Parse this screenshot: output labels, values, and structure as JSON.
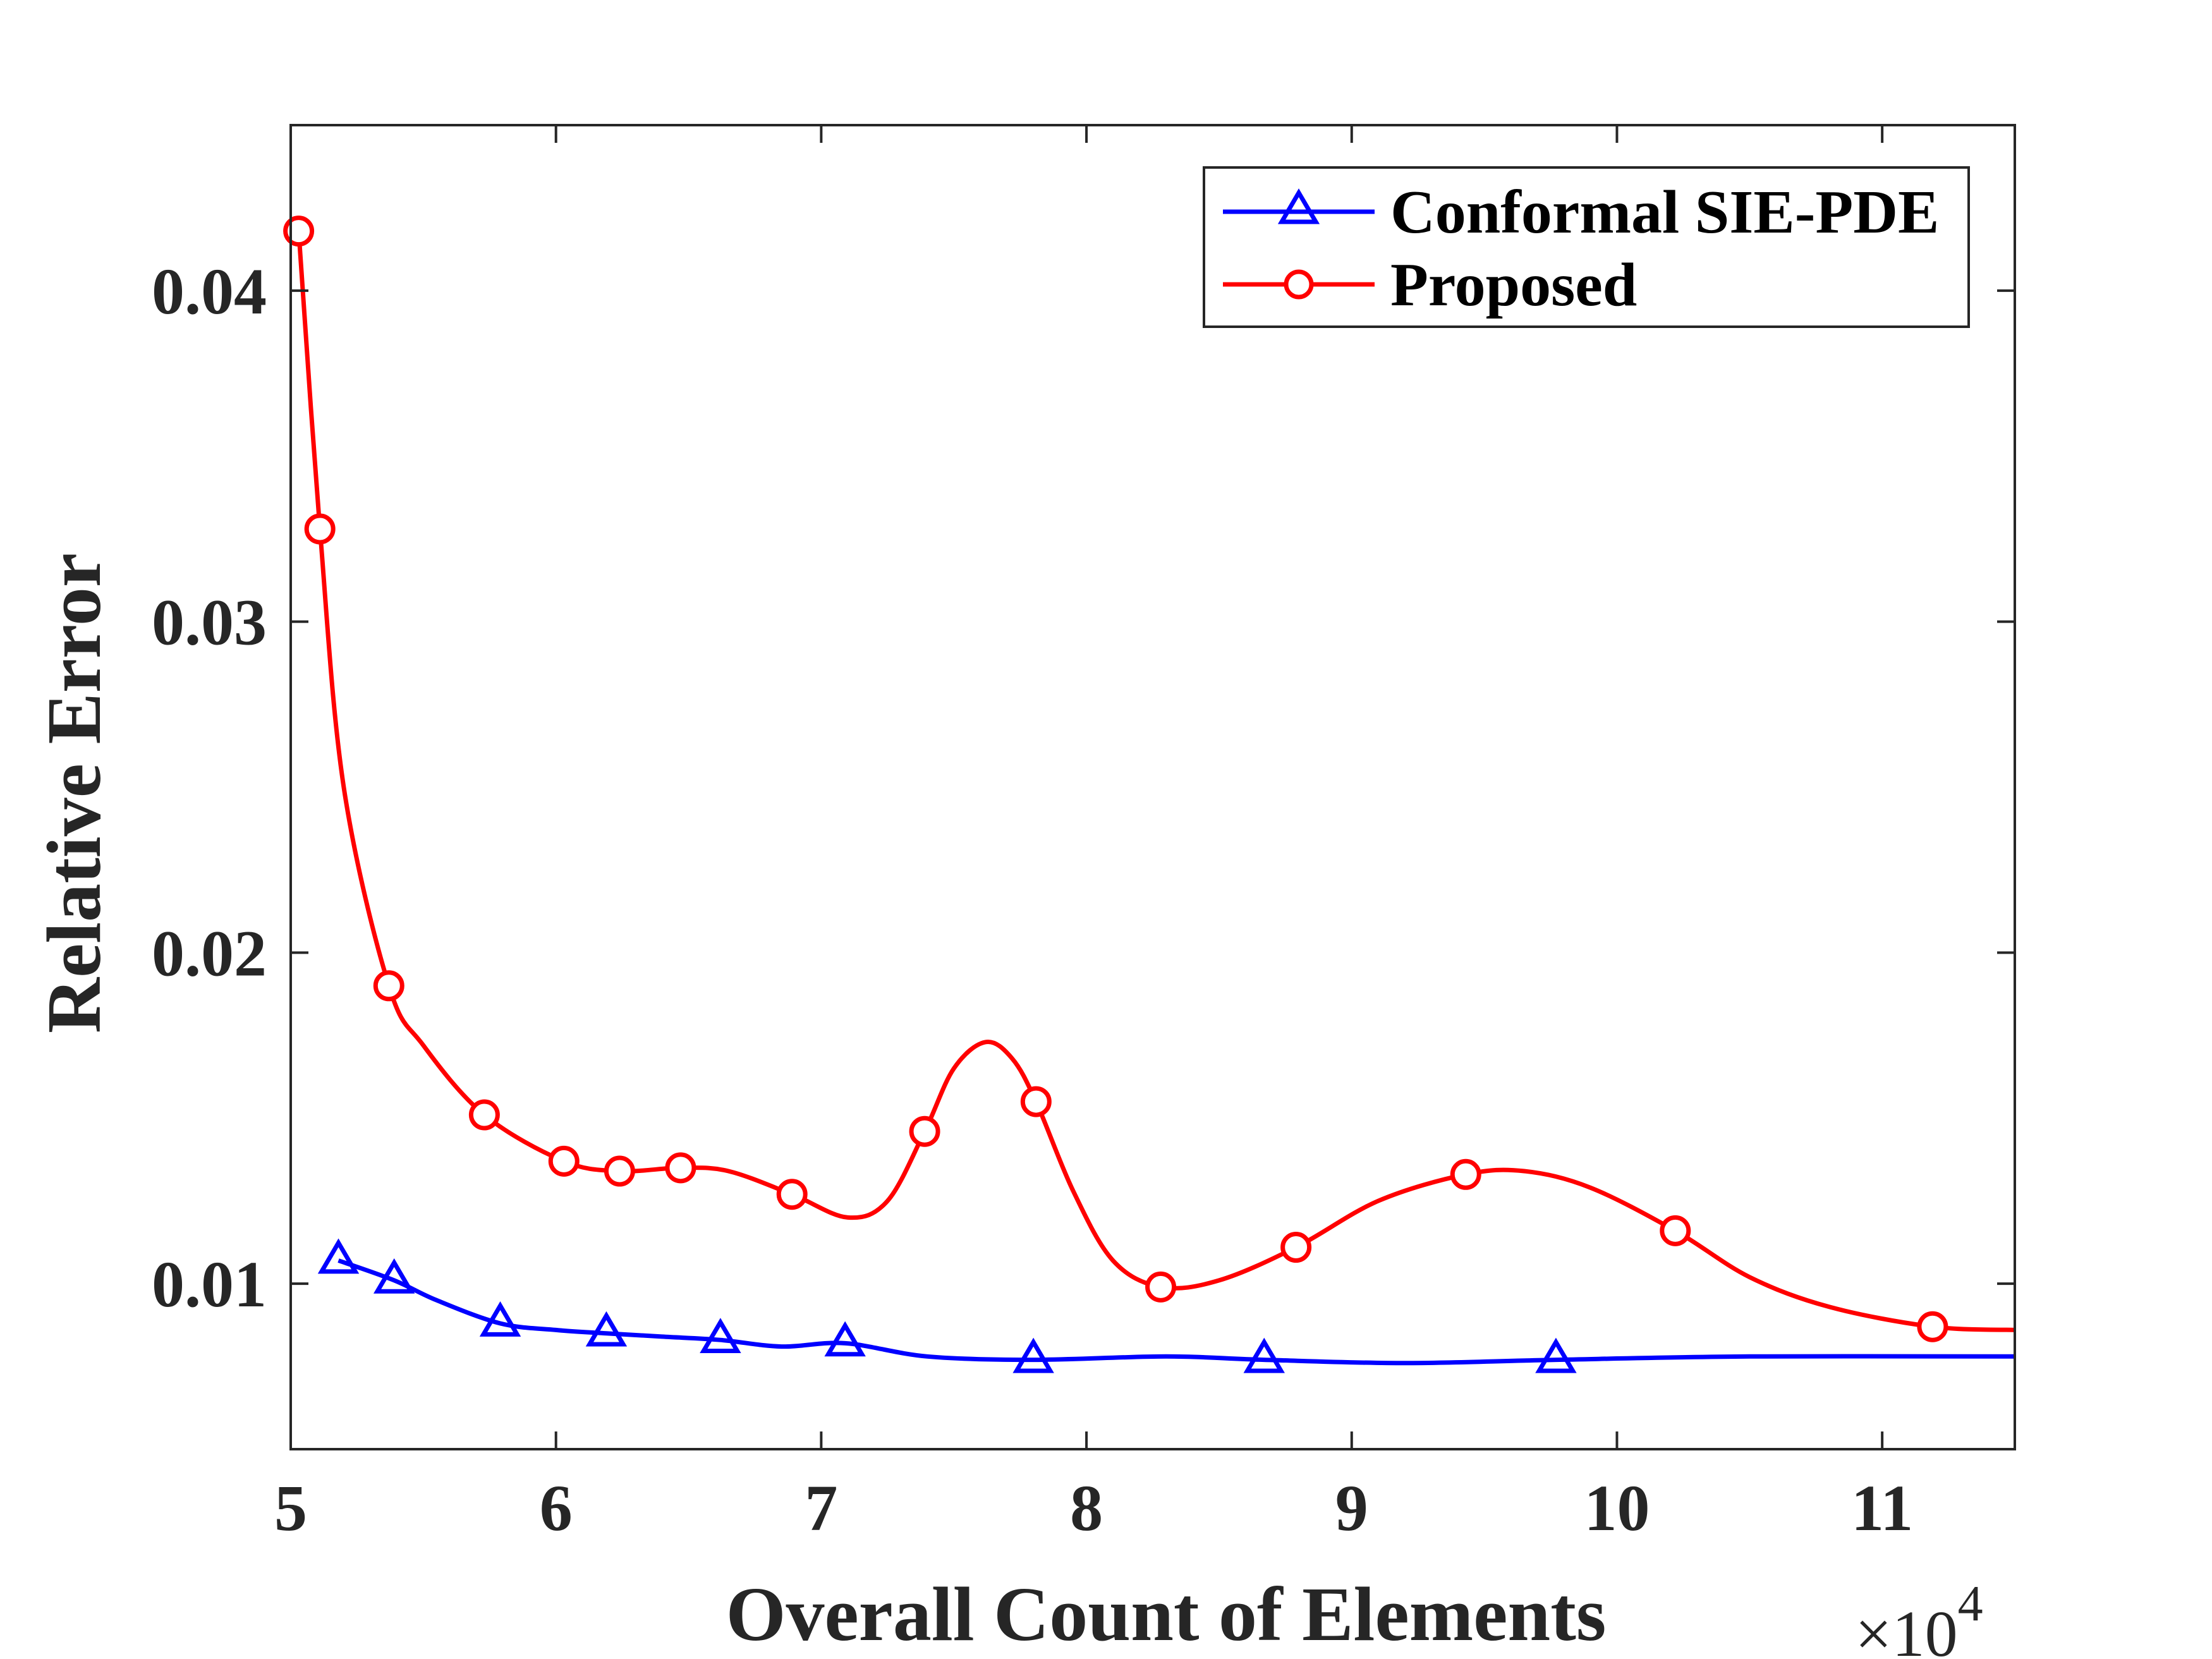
{
  "chart_data": {
    "type": "line",
    "title": "",
    "xlabel": "Overall Count of Elements",
    "ylabel": "Relative Error",
    "x_multiplier_label": {
      "base": "×10",
      "exponent": "4"
    },
    "xlim": [
      5,
      11.5
    ],
    "ylim": [
      0.005,
      0.045
    ],
    "x_ticks": [
      5,
      6,
      7,
      8,
      9,
      10,
      11
    ],
    "x_tick_labels": [
      "5",
      "6",
      "7",
      "8",
      "9",
      "10",
      "11"
    ],
    "y_ticks": [
      0.01,
      0.02,
      0.03,
      0.04
    ],
    "y_tick_labels": [
      "0.01",
      "0.02",
      "0.03",
      "0.04"
    ],
    "grid": false,
    "legend_position": "top-right",
    "series": [
      {
        "name": "Conformal SIE-PDE",
        "color": "#0000ff",
        "marker": "triangle",
        "x": [
          5.18,
          5.39,
          5.79,
          6.19,
          6.62,
          7.09,
          7.8,
          8.67,
          9.77
        ],
        "y": [
          0.0107,
          0.0101,
          0.0088,
          0.0085,
          0.0083,
          0.0082,
          0.0077,
          0.0077,
          0.0077
        ],
        "curve": [
          [
            5.18,
            0.0107
          ],
          [
            5.39,
            0.0101
          ],
          [
            5.55,
            0.0095
          ],
          [
            5.79,
            0.0088
          ],
          [
            6.0,
            0.0086
          ],
          [
            6.19,
            0.0085
          ],
          [
            6.4,
            0.0084
          ],
          [
            6.62,
            0.0083
          ],
          [
            6.85,
            0.0081
          ],
          [
            7.09,
            0.0082
          ],
          [
            7.4,
            0.0078
          ],
          [
            7.8,
            0.0077
          ],
          [
            8.3,
            0.0078
          ],
          [
            8.67,
            0.0077
          ],
          [
            9.2,
            0.0076
          ],
          [
            9.77,
            0.0077
          ],
          [
            10.5,
            0.0078
          ],
          [
            11.5,
            0.0078
          ]
        ]
      },
      {
        "name": "Proposed",
        "color": "#ff0000",
        "marker": "circle",
        "x": [
          5.03,
          5.11,
          5.37,
          5.73,
          6.03,
          6.24,
          6.47,
          6.89,
          7.39,
          7.81,
          8.28,
          8.79,
          9.43,
          10.22,
          11.19
        ],
        "y": [
          0.0418,
          0.0328,
          0.019,
          0.0151,
          0.0137,
          0.0134,
          0.0135,
          0.0127,
          0.0146,
          0.0155,
          0.0099,
          0.0111,
          0.0133,
          0.0116,
          0.0087
        ],
        "curve": [
          [
            5.03,
            0.0418
          ],
          [
            5.11,
            0.0328
          ],
          [
            5.2,
            0.025
          ],
          [
            5.37,
            0.019
          ],
          [
            5.5,
            0.0172
          ],
          [
            5.73,
            0.0151
          ],
          [
            6.03,
            0.0137
          ],
          [
            6.24,
            0.0134
          ],
          [
            6.47,
            0.0135
          ],
          [
            6.65,
            0.0134
          ],
          [
            6.89,
            0.0127
          ],
          [
            7.1,
            0.012
          ],
          [
            7.25,
            0.0125
          ],
          [
            7.39,
            0.0146
          ],
          [
            7.5,
            0.0165
          ],
          [
            7.62,
            0.0173
          ],
          [
            7.72,
            0.0168
          ],
          [
            7.81,
            0.0155
          ],
          [
            7.95,
            0.0128
          ],
          [
            8.1,
            0.0107
          ],
          [
            8.28,
            0.0099
          ],
          [
            8.5,
            0.0101
          ],
          [
            8.79,
            0.0111
          ],
          [
            9.1,
            0.0125
          ],
          [
            9.43,
            0.0133
          ],
          [
            9.65,
            0.0134
          ],
          [
            9.9,
            0.0129
          ],
          [
            10.22,
            0.0116
          ],
          [
            10.5,
            0.0102
          ],
          [
            10.8,
            0.0093
          ],
          [
            11.19,
            0.0087
          ],
          [
            11.5,
            0.0086
          ]
        ]
      }
    ]
  }
}
